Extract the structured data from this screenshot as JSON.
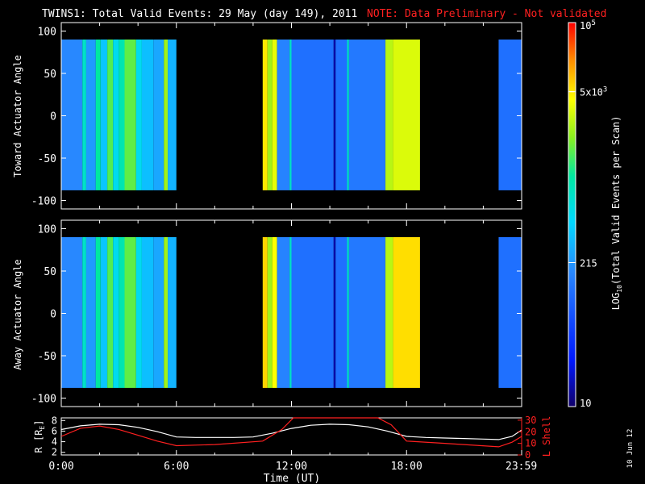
{
  "title": {
    "main": "TWINS1: Total Valid Events: 29 May (day 149), 2011",
    "note": "NOTE: Data Preliminary - Not validated",
    "note_color": "#ff2020"
  },
  "footer_date": "10 Jun 12",
  "colors": {
    "background": "#000000",
    "axes": "#ffffff",
    "r_line": "#ffffff",
    "lshell_line": "#ff2020"
  },
  "chart_data": [
    {
      "type": "heatmap",
      "name": "toward",
      "ylabel": "Toward Actuator Angle",
      "xlim": [
        0,
        24
      ],
      "ylim": [
        -110,
        110
      ],
      "yticks": [
        "100",
        "50",
        "0",
        "-50",
        "-100"
      ],
      "data_yrange": [
        -88,
        90
      ],
      "data_blocks_hours": [
        [
          0,
          6.0
        ],
        [
          10.5,
          18.7
        ],
        [
          22.8,
          24
        ]
      ],
      "bands": [
        {
          "from": 0.0,
          "to": 1.1,
          "level": 0.35
        },
        {
          "from": 1.1,
          "to": 1.3,
          "level": 0.55
        },
        {
          "from": 1.3,
          "to": 1.8,
          "level": 0.38
        },
        {
          "from": 1.8,
          "to": 2.05,
          "level": 0.6
        },
        {
          "from": 2.05,
          "to": 2.4,
          "level": 0.45
        },
        {
          "from": 2.4,
          "to": 2.7,
          "level": 0.66
        },
        {
          "from": 2.7,
          "to": 3.0,
          "level": 0.5
        },
        {
          "from": 3.0,
          "to": 3.3,
          "level": 0.58
        },
        {
          "from": 3.3,
          "to": 3.9,
          "level": 0.67
        },
        {
          "from": 3.9,
          "to": 4.2,
          "level": 0.5
        },
        {
          "from": 4.2,
          "to": 4.8,
          "level": 0.44
        },
        {
          "from": 4.8,
          "to": 5.35,
          "level": 0.4
        },
        {
          "from": 5.35,
          "to": 5.55,
          "level": 0.72
        },
        {
          "from": 5.55,
          "to": 6.0,
          "level": 0.42
        },
        {
          "from": 10.5,
          "to": 10.75,
          "level": 0.82
        },
        {
          "from": 10.75,
          "to": 11.0,
          "level": 0.72
        },
        {
          "from": 11.0,
          "to": 11.25,
          "level": 0.78
        },
        {
          "from": 11.25,
          "to": 11.9,
          "level": 0.34
        },
        {
          "from": 11.9,
          "to": 12.0,
          "level": 0.55
        },
        {
          "from": 12.0,
          "to": 14.2,
          "level": 0.3
        },
        {
          "from": 14.2,
          "to": 14.3,
          "level": 0.05
        },
        {
          "from": 14.3,
          "to": 14.9,
          "level": 0.3
        },
        {
          "from": 14.9,
          "to": 15.0,
          "level": 0.55
        },
        {
          "from": 15.0,
          "to": 16.9,
          "level": 0.32
        },
        {
          "from": 16.9,
          "to": 17.3,
          "level": 0.74
        },
        {
          "from": 17.3,
          "to": 18.7,
          "level": 0.77
        },
        {
          "from": 22.8,
          "to": 24.0,
          "level": 0.3
        }
      ]
    },
    {
      "type": "heatmap",
      "name": "away",
      "ylabel": "Away Actuator Angle",
      "xlim": [
        0,
        24
      ],
      "ylim": [
        -110,
        110
      ],
      "yticks": [
        "100",
        "50",
        "0",
        "-50",
        "-100"
      ],
      "data_yrange": [
        -88,
        90
      ],
      "data_blocks_hours": [
        [
          0,
          6.0
        ],
        [
          10.5,
          18.7
        ],
        [
          22.8,
          24
        ]
      ],
      "bands": [
        {
          "from": 0.0,
          "to": 1.1,
          "level": 0.35
        },
        {
          "from": 1.1,
          "to": 1.3,
          "level": 0.55
        },
        {
          "from": 1.3,
          "to": 1.8,
          "level": 0.38
        },
        {
          "from": 1.8,
          "to": 2.05,
          "level": 0.6
        },
        {
          "from": 2.05,
          "to": 2.4,
          "level": 0.45
        },
        {
          "from": 2.4,
          "to": 2.7,
          "level": 0.66
        },
        {
          "from": 2.7,
          "to": 3.0,
          "level": 0.5
        },
        {
          "from": 3.0,
          "to": 3.3,
          "level": 0.58
        },
        {
          "from": 3.3,
          "to": 3.9,
          "level": 0.67
        },
        {
          "from": 3.9,
          "to": 4.2,
          "level": 0.5
        },
        {
          "from": 4.2,
          "to": 4.8,
          "level": 0.44
        },
        {
          "from": 4.8,
          "to": 5.35,
          "level": 0.4
        },
        {
          "from": 5.35,
          "to": 5.55,
          "level": 0.72
        },
        {
          "from": 5.55,
          "to": 6.0,
          "level": 0.42
        },
        {
          "from": 10.5,
          "to": 10.75,
          "level": 0.84
        },
        {
          "from": 10.75,
          "to": 11.0,
          "level": 0.72
        },
        {
          "from": 11.0,
          "to": 11.25,
          "level": 0.8
        },
        {
          "from": 11.25,
          "to": 11.9,
          "level": 0.34
        },
        {
          "from": 11.9,
          "to": 12.0,
          "level": 0.55
        },
        {
          "from": 12.0,
          "to": 14.2,
          "level": 0.3
        },
        {
          "from": 14.2,
          "to": 14.3,
          "level": 0.05
        },
        {
          "from": 14.3,
          "to": 14.9,
          "level": 0.3
        },
        {
          "from": 14.9,
          "to": 15.0,
          "level": 0.55
        },
        {
          "from": 15.0,
          "to": 16.9,
          "level": 0.32
        },
        {
          "from": 16.9,
          "to": 17.3,
          "level": 0.74
        },
        {
          "from": 17.3,
          "to": 18.7,
          "level": 0.83
        },
        {
          "from": 22.8,
          "to": 24.0,
          "level": 0.3
        }
      ]
    },
    {
      "type": "line",
      "name": "orbit",
      "xlabel": "Time (UT)",
      "xticks": [
        {
          "hour": 0,
          "label": "0:00"
        },
        {
          "hour": 6,
          "label": "6:00"
        },
        {
          "hour": 12,
          "label": "12:00"
        },
        {
          "hour": 18,
          "label": "18:00"
        },
        {
          "hour": 23.983,
          "label": "23:59"
        }
      ],
      "left_axis": {
        "label": "R [R",
        "label_sub": "E",
        "label_end": "]",
        "ylim": [
          1.5,
          8.5
        ],
        "ticks": [
          "8",
          "6",
          "4",
          "2"
        ]
      },
      "right_axis": {
        "label": "L Shell",
        "ylim": [
          0,
          32
        ],
        "ticks": [
          "30",
          "20",
          "10",
          "0"
        ]
      },
      "series": [
        {
          "axis": "left",
          "x": [
            0,
            1,
            2,
            3,
            4,
            5,
            6,
            7,
            8,
            9,
            10,
            11,
            12,
            13,
            14,
            15,
            16,
            17,
            18,
            19,
            20,
            21,
            22,
            22.8,
            23.5,
            24
          ],
          "y": [
            6.3,
            7.0,
            7.3,
            7.2,
            6.7,
            5.9,
            4.9,
            4.8,
            4.8,
            4.8,
            4.9,
            5.6,
            6.5,
            7.1,
            7.3,
            7.2,
            6.8,
            6.0,
            5.0,
            4.8,
            4.7,
            4.6,
            4.5,
            4.4,
            5.0,
            6.2
          ]
        },
        {
          "axis": "right",
          "x": [
            0,
            1,
            2,
            3,
            4,
            5,
            6,
            8,
            10.5,
            11.5,
            12.1,
            16.5,
            17.2,
            18,
            20,
            22.8,
            23.5,
            24
          ],
          "y": [
            16,
            23,
            25,
            22,
            17,
            12,
            8,
            9,
            12,
            22,
            32,
            32,
            26,
            12,
            10,
            7,
            11,
            16
          ]
        }
      ]
    }
  ],
  "colorbar": {
    "label": "LOG10(Total Valid Events per Scan)",
    "label_main": "LOG",
    "label_sub": "10",
    "label_rest": "(Total Valid Events per Scan)",
    "ticks": [
      {
        "level": 0.0,
        "label": "10"
      },
      {
        "level": 0.375,
        "label": "215"
      },
      {
        "level": 0.82,
        "label": "5x10",
        "sup": "3"
      },
      {
        "level": 1.0,
        "label": "10",
        "sup": "5"
      }
    ]
  }
}
